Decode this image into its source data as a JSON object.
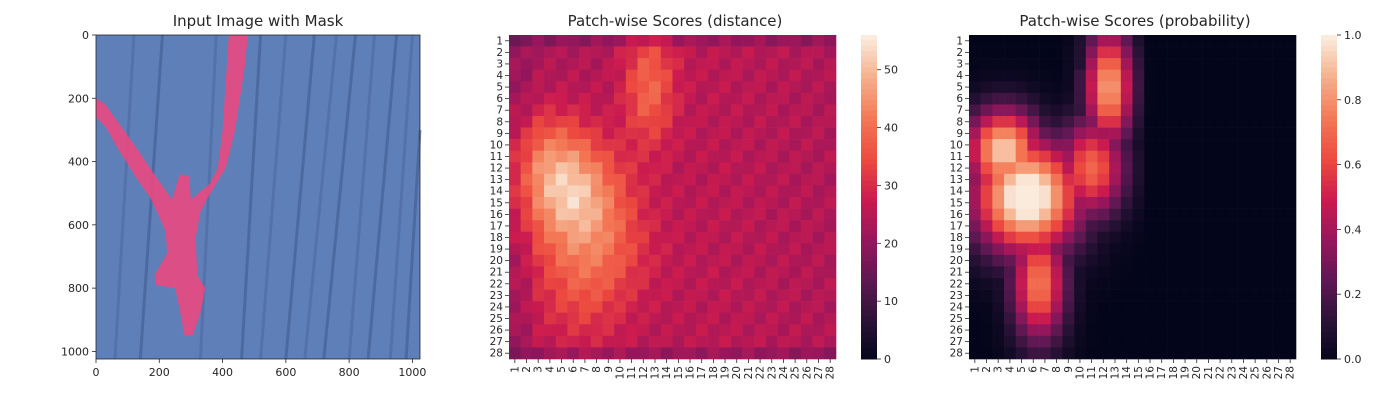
{
  "chart_data": [
    {
      "type": "image",
      "title": "Input Image with Mask",
      "xlabel": "",
      "ylabel": "",
      "xlim": [
        0,
        1024
      ],
      "ylim": [
        1024,
        0
      ],
      "xticks": [
        "0",
        "200",
        "400",
        "600",
        "800",
        "1000"
      ],
      "yticks": [
        "0",
        "200",
        "400",
        "600",
        "800",
        "1000"
      ],
      "colors": {
        "background": "#5f7fb8",
        "mask": "#f2467c"
      }
    },
    {
      "type": "heatmap",
      "title": "Patch-wise Scores (distance)",
      "rows": 28,
      "cols": 28,
      "vmin": 0,
      "vmax": 56,
      "colorbar_ticks": [
        "0",
        "10",
        "20",
        "30",
        "40",
        "50"
      ],
      "colormap": "rocket"
    },
    {
      "type": "heatmap",
      "title": "Patch-wise Scores (probability)",
      "rows": 28,
      "cols": 28,
      "vmin": 0,
      "vmax": 1,
      "colorbar_ticks": [
        "0.0",
        "0.2",
        "0.4",
        "0.6",
        "0.8",
        "1.0"
      ],
      "colormap": "rocket"
    }
  ]
}
